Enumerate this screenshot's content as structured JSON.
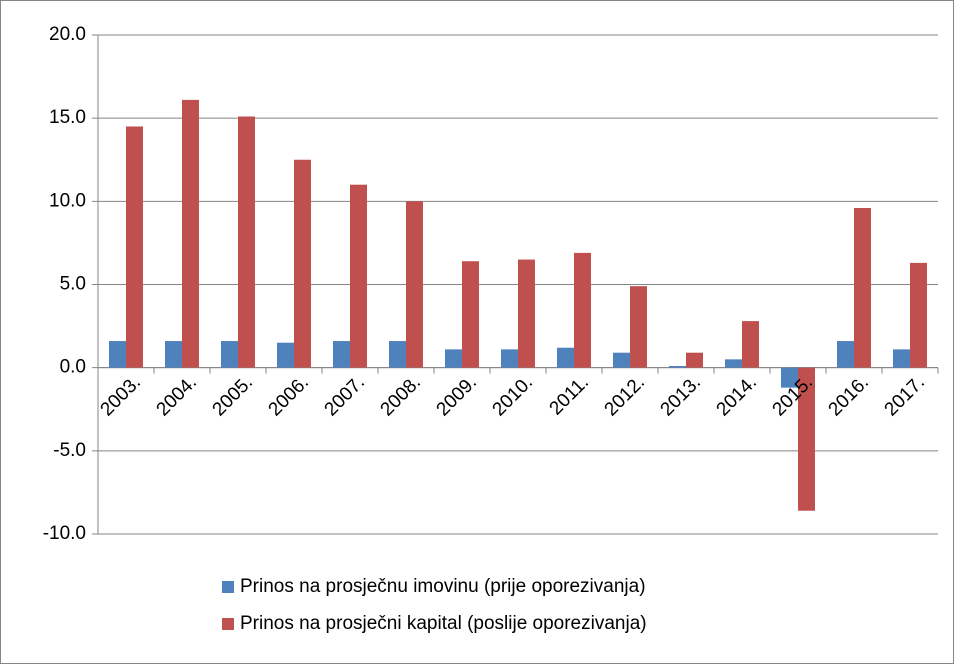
{
  "chart_data": {
    "type": "bar",
    "categories": [
      "2003.",
      "2004.",
      "2005.",
      "2006.",
      "2007.",
      "2008.",
      "2009.",
      "2010.",
      "2011.",
      "2012.",
      "2013.",
      "2014.",
      "2015.",
      "2016.",
      "2017."
    ],
    "series": [
      {
        "name": "Prinos na prosječnu imovinu (prije oporezivanja)",
        "color": "#4f81bd",
        "values": [
          1.6,
          1.6,
          1.6,
          1.5,
          1.6,
          1.6,
          1.1,
          1.1,
          1.2,
          0.9,
          0.1,
          0.5,
          -1.2,
          1.6,
          1.1
        ]
      },
      {
        "name": "Prinos na prosječni kapital (poslije oporezivanja)",
        "color": "#c0504d",
        "values": [
          14.5,
          16.1,
          15.1,
          12.5,
          11.0,
          10.0,
          6.4,
          6.5,
          6.9,
          4.9,
          0.9,
          2.8,
          -8.6,
          9.6,
          6.3
        ]
      }
    ],
    "ylim": [
      -10,
      20
    ],
    "yticks": [
      {
        "value": -10,
        "label": "-10.0"
      },
      {
        "value": -5,
        "label": "-5.0"
      },
      {
        "value": 0,
        "label": "0.0"
      },
      {
        "value": 5,
        "label": "5.0"
      },
      {
        "value": 10,
        "label": "10.0"
      },
      {
        "value": 15,
        "label": "15.0"
      },
      {
        "value": 20,
        "label": "20.0"
      }
    ],
    "grid": true
  }
}
